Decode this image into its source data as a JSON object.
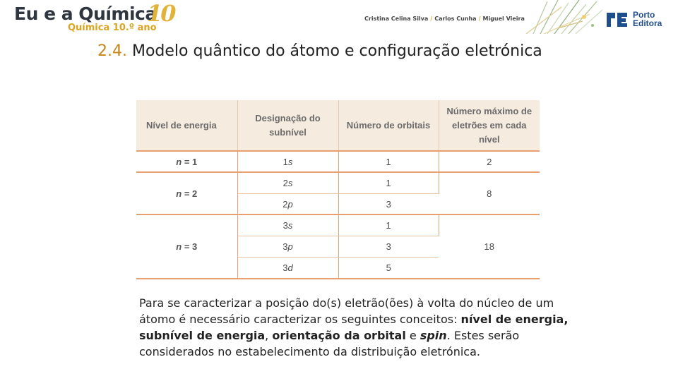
{
  "header": {
    "logo_main": "Eu e a Química",
    "logo_sub": "Química 10.º ano",
    "logo_number": "10",
    "authors": [
      "Cristina Celina Silva",
      "Carlos Cunha",
      "Miguel Vieira"
    ],
    "author_separator": "/",
    "publisher": "Porto Editora",
    "publisher_line1": "Porto",
    "publisher_line2": "Editora"
  },
  "title": {
    "number": "2.4.",
    "text": "Modelo quântico do átomo e configuração eletrónica"
  },
  "table": {
    "headers": [
      "Nível de energia",
      "Designação do subnível",
      "Número de orbitais",
      "Número máximo de eletrões em cada nível"
    ],
    "levels": [
      {
        "label": "n = 1",
        "n_symbol": "n",
        "n_value": "= 1",
        "max_electrons": "2",
        "subshells": [
          {
            "number": "1",
            "letter": "s",
            "orbitals": "1"
          }
        ]
      },
      {
        "label": "n = 2",
        "n_symbol": "n",
        "n_value": "= 2",
        "max_electrons": "8",
        "subshells": [
          {
            "number": "2",
            "letter": "s",
            "orbitals": "1"
          },
          {
            "number": "2",
            "letter": "p",
            "orbitals": "3"
          }
        ]
      },
      {
        "label": "n = 3",
        "n_symbol": "n",
        "n_value": "= 3",
        "max_electrons": "18",
        "subshells": [
          {
            "number": "3",
            "letter": "s",
            "orbitals": "1"
          },
          {
            "number": "3",
            "letter": "p",
            "orbitals": "3"
          },
          {
            "number": "3",
            "letter": "d",
            "orbitals": "5"
          }
        ]
      }
    ]
  },
  "paragraph": {
    "p1": "Para se caracterizar a posição do(s) eletrão(ões) à volta do núcleo de um átomo é necessário caracterizar os seguintes conceitos: ",
    "b1": "nível de energia,",
    "p2": " ",
    "b2": "subnível de energia",
    "p3": ", ",
    "b3": "orientação da orbital",
    "p4": " e ",
    "i1": "spin",
    "p5": ". Estes serão considerados no estabelecimento da distribuição eletrónica."
  },
  "colors": {
    "accent": "#c8851a",
    "table_header_bg": "#f6ebdf",
    "table_rule": "#e9a070",
    "publisher_blue": "#1f4e8c"
  }
}
